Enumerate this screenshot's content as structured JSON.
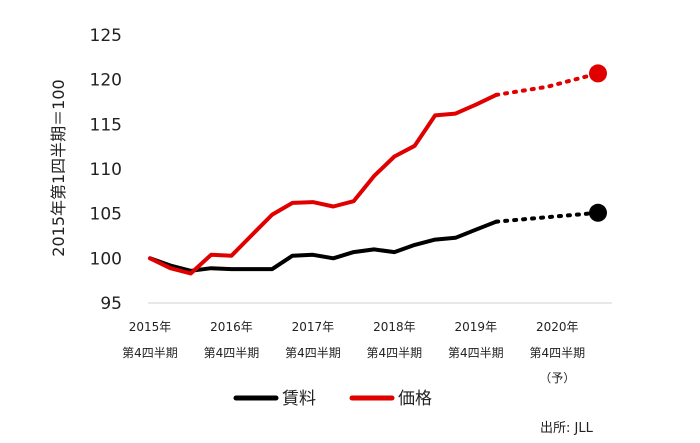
{
  "chart_data": {
    "type": "line",
    "ylabel": "2015年第1四半期＝100",
    "ylim": [
      95,
      125
    ],
    "yticks": [
      95,
      100,
      105,
      110,
      115,
      120,
      125
    ],
    "x_labels": [
      {
        "year": "2015年",
        "period": "第4四半期",
        "note": ""
      },
      {
        "year": "2016年",
        "period": "第4四半期",
        "note": ""
      },
      {
        "year": "2017年",
        "period": "第4四半期",
        "note": ""
      },
      {
        "year": "2018年",
        "period": "第4四半期",
        "note": ""
      },
      {
        "year": "2019年",
        "period": "第4四半期",
        "note": ""
      },
      {
        "year": "2020年",
        "period": "第4四半期",
        "note": "（予）"
      }
    ],
    "series": [
      {
        "name": "賃料",
        "color": "#000000",
        "values": [
          100.0,
          99.2,
          98.6,
          98.9,
          98.8,
          98.8,
          98.8,
          100.3,
          100.4,
          100.0,
          100.7,
          101.0,
          100.7,
          101.5,
          102.1,
          102.3,
          103.2,
          104.1
        ],
        "forecast": [
          104.1,
          104.6,
          105.1
        ]
      },
      {
        "name": "価格",
        "color": "#e00000",
        "values": [
          100.0,
          98.9,
          98.3,
          100.4,
          100.3,
          102.6,
          104.9,
          106.2,
          106.3,
          105.8,
          106.4,
          109.2,
          111.4,
          112.6,
          116.0,
          116.2,
          117.2,
          118.3
        ],
        "forecast": [
          118.3,
          119.2,
          120.7
        ]
      }
    ],
    "legend": "bottom-center",
    "annotations": [
      "出所: JLL"
    ]
  }
}
